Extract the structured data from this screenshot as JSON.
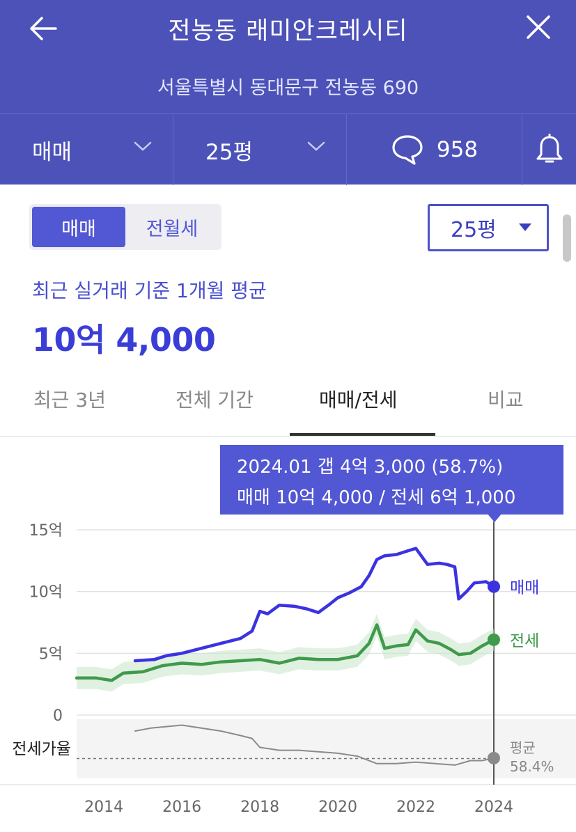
{
  "header": {
    "title": "전농동 래미안크레시티",
    "address": "서울특별시 동대문구 전농동 690",
    "filters": {
      "type": "매매",
      "size": "25평",
      "comment_count": "958"
    },
    "icons": [
      "back-arrow-icon",
      "close-icon",
      "chevron-down-icon",
      "speech-bubble-icon",
      "bell-icon"
    ]
  },
  "controls": {
    "segment": [
      "매매",
      "전월세"
    ],
    "segment_selected": "매매",
    "size_select": "25평"
  },
  "summary": {
    "label": "최근 실거래 기준 1개월 평균",
    "price": "10억 4,000"
  },
  "tabs": [
    "최근 3년",
    "전체 기간",
    "매매/전세",
    "비교"
  ],
  "active_tab": "매매/전세",
  "tooltip": {
    "line1": "2024.01  갭 4억 3,000 (58.7%)",
    "line2": "매매 10억 4,000 / 전세 6억 1,000"
  },
  "colors": {
    "header": "#4d52b8",
    "accent": "#5257d4",
    "sale": "#3b33e0",
    "jeonse": "#3f9a4c",
    "ratio": "#8a8a8a"
  },
  "chart_data": {
    "type": "line",
    "ylabel_ticks": [
      "15억",
      "10억",
      "5억",
      "0"
    ],
    "y_ticks": [
      15,
      10,
      5,
      0
    ],
    "ylim": [
      0,
      15
    ],
    "x_ticks": [
      "2014",
      "2016",
      "2018",
      "2020",
      "2022",
      "2024"
    ],
    "x_range": [
      2013.3,
      2024.0
    ],
    "grid": true,
    "series": [
      {
        "name": "매매",
        "end_label": "매매",
        "x": [
          2014.8,
          2015.3,
          2015.6,
          2016.0,
          2016.5,
          2017.0,
          2017.5,
          2017.8,
          2018.0,
          2018.2,
          2018.5,
          2018.9,
          2019.2,
          2019.5,
          2019.8,
          2020.0,
          2020.3,
          2020.6,
          2020.8,
          2021.0,
          2021.2,
          2021.5,
          2021.8,
          2022.0,
          2022.3,
          2022.6,
          2022.8,
          2023.0,
          2023.1,
          2023.3,
          2023.5,
          2023.8,
          2024.0
        ],
        "values": [
          4.4,
          4.5,
          4.8,
          5.0,
          5.4,
          5.8,
          6.2,
          6.8,
          8.4,
          8.2,
          8.9,
          8.8,
          8.6,
          8.3,
          9.0,
          9.5,
          9.9,
          10.4,
          11.3,
          12.6,
          12.9,
          13.0,
          13.3,
          13.5,
          12.2,
          12.3,
          12.2,
          12.0,
          9.4,
          10.0,
          10.7,
          10.8,
          10.4
        ]
      },
      {
        "name": "전세",
        "end_label": "전세",
        "x": [
          2013.3,
          2013.8,
          2014.2,
          2014.5,
          2015.0,
          2015.5,
          2016.0,
          2016.5,
          2017.0,
          2017.5,
          2018.0,
          2018.5,
          2019.0,
          2019.5,
          2020.0,
          2020.5,
          2020.8,
          2021.0,
          2021.2,
          2021.5,
          2021.8,
          2022.0,
          2022.3,
          2022.6,
          2022.9,
          2023.1,
          2023.4,
          2023.7,
          2024.0
        ],
        "values": [
          3.0,
          3.0,
          2.8,
          3.4,
          3.5,
          4.0,
          4.2,
          4.1,
          4.3,
          4.4,
          4.5,
          4.2,
          4.6,
          4.5,
          4.5,
          4.8,
          5.8,
          7.3,
          5.4,
          5.6,
          5.7,
          6.9,
          6.0,
          5.8,
          5.3,
          4.9,
          5.0,
          5.6,
          6.1
        ]
      },
      {
        "name": "전세가율",
        "end_label": "평균 58.4%",
        "x": [
          2014.8,
          2015.2,
          2015.6,
          2016.0,
          2016.5,
          2017.0,
          2017.5,
          2017.8,
          2018.0,
          2018.5,
          2019.0,
          2019.5,
          2020.0,
          2020.5,
          2021.0,
          2021.5,
          2022.0,
          2022.5,
          2023.0,
          2023.4,
          2023.7,
          2024.0
        ],
        "values": [
          77,
          79,
          80,
          81,
          79,
          77,
          74,
          72,
          66,
          64,
          64,
          63,
          62,
          60,
          55,
          55,
          56,
          55,
          54,
          57,
          57,
          58.7
        ]
      }
    ],
    "ratio_label": "전세가율",
    "ratio_average_label": "평균",
    "ratio_average_value": "58.4%",
    "ratio_average": 58.4
  }
}
